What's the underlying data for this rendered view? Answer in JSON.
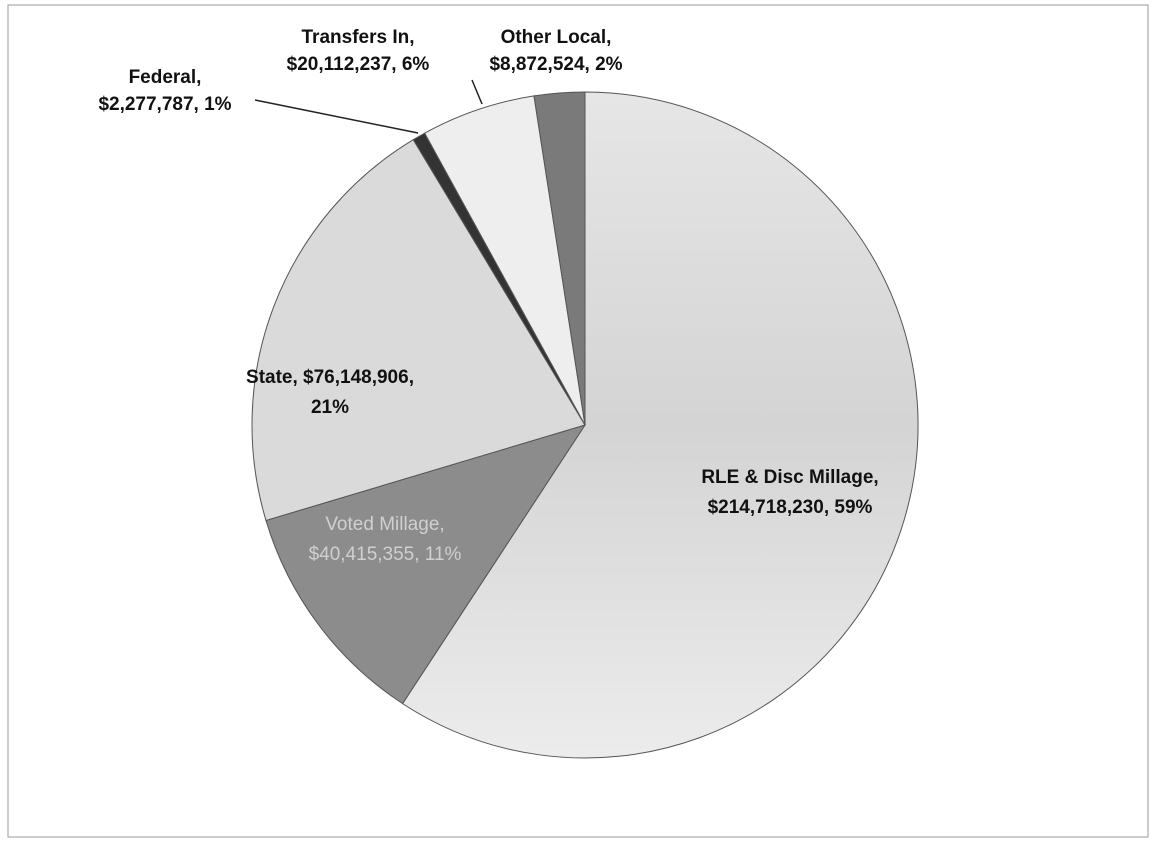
{
  "chart_data": {
    "type": "pie",
    "values": [
      214718230,
      40415355,
      76148906,
      2277787,
      20112237,
      8872524
    ],
    "colors": [
      "#e2e2e2",
      "#8c8c8c",
      "#dadada",
      "#333333",
      "#eeeeee",
      "#7a7a7a"
    ],
    "labels": [
      [
        "RLE & Disc Millage,",
        "$214,718,230, 59%"
      ],
      [
        "Voted Millage,",
        "$40,415,355, 11%"
      ],
      [
        "State, $76,148,906,",
        "21%"
      ],
      [
        "Federal,",
        "$2,277,787, 1%"
      ],
      [
        "Transfers In,",
        "$20,112,237, 6%"
      ],
      [
        "Other Local,",
        "$8,872,524, 2%"
      ]
    ]
  }
}
